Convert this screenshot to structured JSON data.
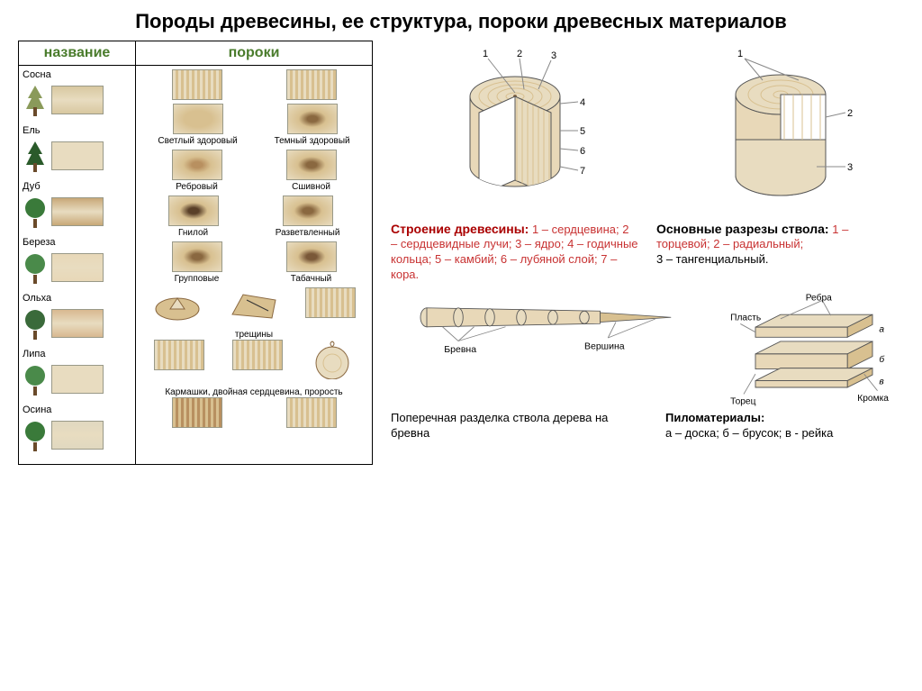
{
  "title": "Породы древесины, ее структура, пороки древесных материалов",
  "headers": {
    "name": "название",
    "defects": "пороки"
  },
  "header_color": "#4a7c2c",
  "species": [
    {
      "name": "Сосна",
      "tree_color": "#8a9a5a",
      "wood_color": "#d8c8a0"
    },
    {
      "name": "Ель",
      "tree_color": "#2a5a2a",
      "wood_color": "#e8dcc0"
    },
    {
      "name": "Дуб",
      "tree_color": "#3a7a3a",
      "wood_color": "#c8a878"
    },
    {
      "name": "Береза",
      "tree_color": "#4a8a4a",
      "wood_color": "#e8d8b8"
    },
    {
      "name": "Ольха",
      "tree_color": "#3a6a3a",
      "wood_color": "#d8b890"
    },
    {
      "name": "Липа",
      "tree_color": "#4a8a4a",
      "wood_color": "#e8dcc0"
    },
    {
      "name": "Осина",
      "tree_color": "#3a7a3a",
      "wood_color": "#e0d8c0"
    }
  ],
  "defects": {
    "row1": [
      "Светлый здоровый",
      "Темный здоровый"
    ],
    "row2": [
      "Ребровый",
      "Сшивной"
    ],
    "row3": [
      "Гнилой",
      "Разветвленный"
    ],
    "row4": [
      "Групповые",
      "Табачный"
    ],
    "row5_label": "трещины",
    "row6_label": "Кармашки, двойная сердцевина, прорость"
  },
  "colors": {
    "wood_light": "#e8dcc0",
    "wood_mid": "#d8c090",
    "wood_dark": "#b89060",
    "wood_knot": "#8a6840",
    "wood_border": "#998866",
    "trunk_fill": "#e8d8b8",
    "trunk_stroke": "#555555",
    "label_line": "#888888"
  },
  "structure": {
    "heading": "Строение древесины:",
    "body": "1 – сердцевина; 2 – сердцевидные лучи; 3 – ядро; 4 – годичные кольца; 5 – камбий; 6 – лубяной слой; 7 – кора.",
    "numbers": [
      "1",
      "2",
      "3",
      "4",
      "5",
      "6",
      "7"
    ]
  },
  "cuts": {
    "heading": "Основные разрезы ствола:",
    "body": " 1 – торцевой; 2 – радиальный;",
    "body2": "3 – тангенциальный.",
    "numbers": [
      "1",
      "2",
      "3"
    ]
  },
  "log": {
    "labels": {
      "log": "Бревна",
      "top": "Вершина"
    },
    "caption": "Поперечная разделка ствола дерева на бревна"
  },
  "lumber": {
    "labels": {
      "edges": "Ребра",
      "face": "Пласть",
      "end": "Торец",
      "edge2": "Кромка"
    },
    "letters": [
      "а",
      "б",
      "в"
    ],
    "heading": "Пиломатериалы:",
    "body": "а – доска; б – брусок; в - рейка"
  }
}
